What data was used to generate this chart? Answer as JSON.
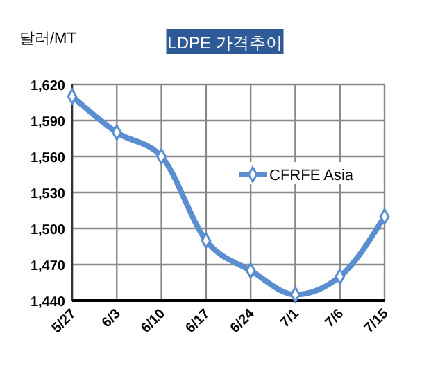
{
  "chart_data": {
    "type": "line",
    "title": "LDPE 가격추이",
    "ylabel": "달러/MT",
    "categories": [
      "5/27",
      "6/3",
      "6/10",
      "6/17",
      "6/24",
      "7/1",
      "7/6",
      "7/15"
    ],
    "series": [
      {
        "name": "CFRFE Asia",
        "color": "#5b8ed0",
        "values": [
          1610,
          1580,
          1560,
          1490,
          1465,
          1445,
          1460,
          1510
        ]
      }
    ],
    "ylim": [
      1440,
      1620
    ],
    "yticks": [
      {
        "value": 1440,
        "label": "1,440"
      },
      {
        "value": 1470,
        "label": "1,470"
      },
      {
        "value": 1500,
        "label": "1,500"
      },
      {
        "value": 1530,
        "label": "1,530"
      },
      {
        "value": 1560,
        "label": "1,560"
      },
      {
        "value": 1590,
        "label": "1,590"
      },
      {
        "value": 1620,
        "label": "1,620"
      }
    ],
    "grid": true,
    "legend": "right",
    "marker": "diamond",
    "line_style": "solid"
  }
}
